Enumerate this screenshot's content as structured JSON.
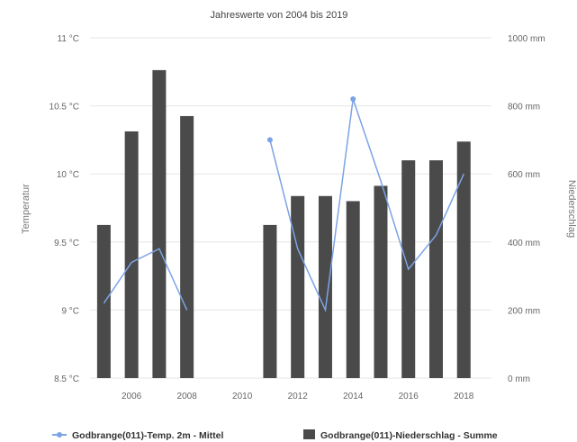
{
  "chart_data": {
    "type": "bar+line",
    "title": "Jahreswerte von 2004 bis 2019",
    "x": [
      2005,
      2006,
      2007,
      2008,
      2009,
      2010,
      2011,
      2012,
      2013,
      2014,
      2015,
      2016,
      2017,
      2018
    ],
    "x_ticks": [
      "2006",
      "2008",
      "2010",
      "2012",
      "2014",
      "2016",
      "2018"
    ],
    "xlim": [
      2004.5,
      2019
    ],
    "y_left": {
      "label": "Temperatur",
      "lim": [
        8.5,
        11
      ],
      "ticks": [
        "8.5 °C",
        "9 °C",
        "9.5 °C",
        "10 °C",
        "10.5 °C",
        "11 °C"
      ]
    },
    "y_right": {
      "label": "Niederschlag",
      "lim": [
        0,
        1000
      ],
      "ticks": [
        "0 mm",
        "200 mm",
        "400 mm",
        "600 mm",
        "800 mm",
        "1000 mm"
      ]
    },
    "grid": true,
    "legend_position": "bottom",
    "series": [
      {
        "name": "Godbrange(011)-Temp. 2m - Mittel",
        "type": "line",
        "axis": "left",
        "color": "#7CA3E6",
        "values": [
          9.05,
          9.35,
          9.45,
          9.0,
          null,
          null,
          10.25,
          9.45,
          9.0,
          10.55,
          9.95,
          9.3,
          9.55,
          10.0
        ]
      },
      {
        "name": "Godbrange(011)-Niederschlag - Summe",
        "type": "bar",
        "axis": "right",
        "color": "#4a4a4a",
        "values": [
          450,
          725,
          905,
          770,
          null,
          null,
          450,
          535,
          535,
          520,
          565,
          640,
          640,
          695
        ]
      }
    ]
  }
}
